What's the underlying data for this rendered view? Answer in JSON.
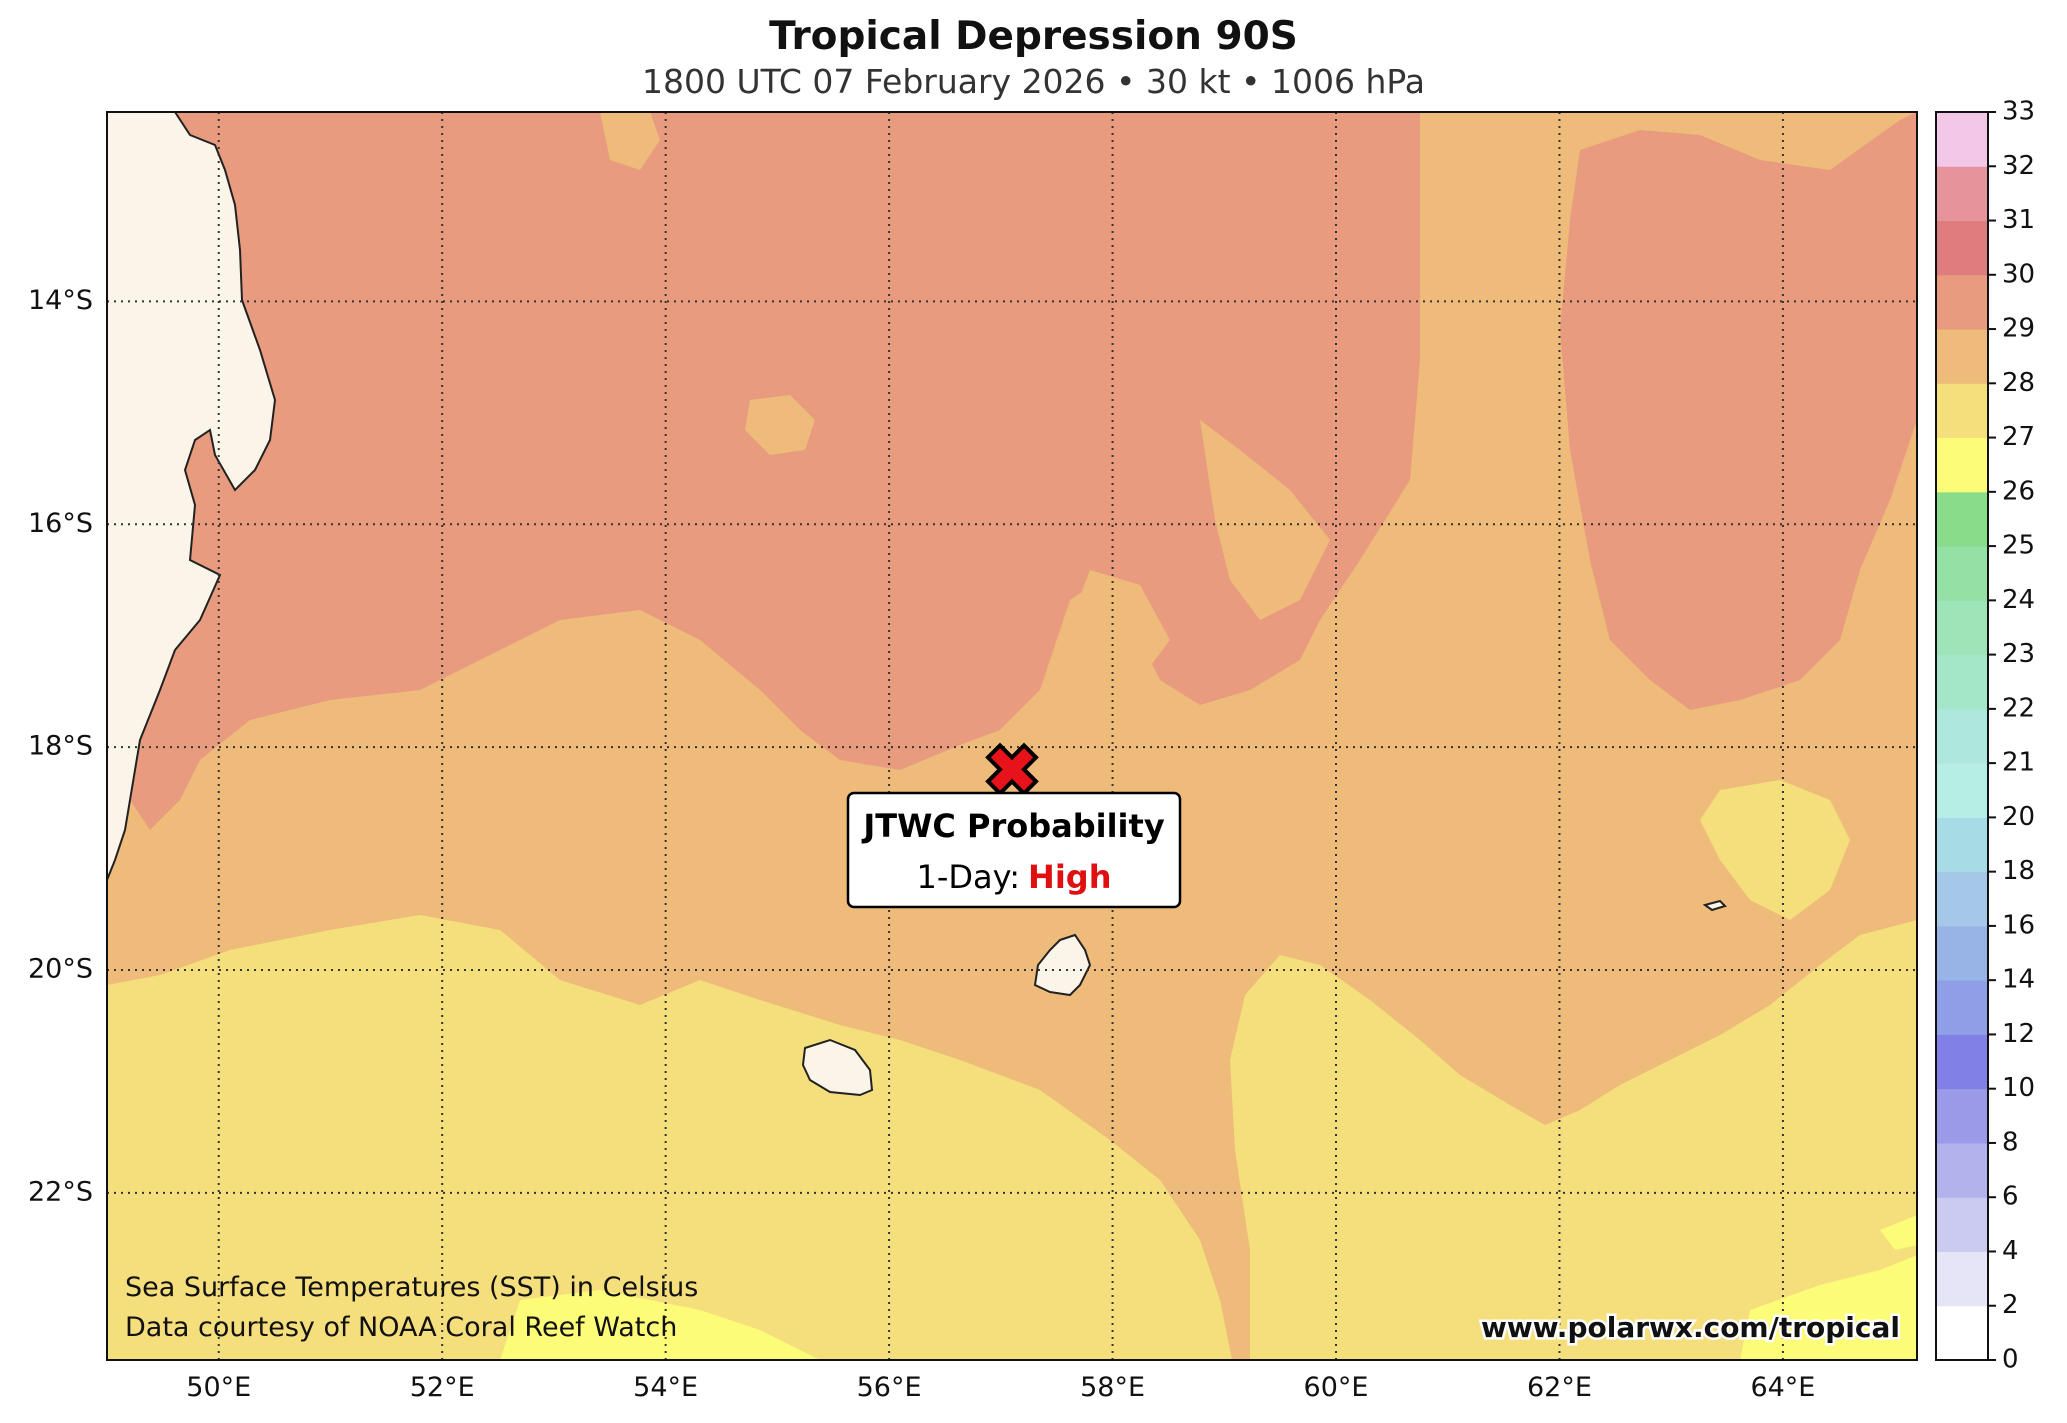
{
  "header": {
    "title": "Tropical Depression 90S",
    "subtitle": "1800 UTC 07 February 2026 • 30 kt • 1006 hPa"
  },
  "map": {
    "lon_range": [
      49,
      65.2
    ],
    "lat_range": [
      -23.5,
      -12.3
    ],
    "lat_ticks": [
      {
        "value": -14,
        "label": "14°S"
      },
      {
        "value": -16,
        "label": "16°S"
      },
      {
        "value": -18,
        "label": "18°S"
      },
      {
        "value": -20,
        "label": "20°S"
      },
      {
        "value": -22,
        "label": "22°S"
      }
    ],
    "lon_ticks": [
      {
        "value": 50,
        "label": "50°E"
      },
      {
        "value": 52,
        "label": "52°E"
      },
      {
        "value": 54,
        "label": "54°E"
      },
      {
        "value": 56,
        "label": "56°E"
      },
      {
        "value": 58,
        "label": "58°E"
      },
      {
        "value": 60,
        "label": "60°E"
      },
      {
        "value": 62,
        "label": "62°E"
      },
      {
        "value": 64,
        "label": "64°E"
      }
    ],
    "storm": {
      "lon": 57.1,
      "lat": -18.2,
      "marker": "x-marker-icon",
      "color": "#e8121a"
    },
    "probability_box": {
      "title": "JTWC Probability",
      "label": "1-Day:",
      "value": "High",
      "value_color": "#e01010"
    },
    "credits": {
      "line1": "Sea Surface Temperatures (SST) in Celsius",
      "line2": "Data courtesy of NOAA Coral Reef Watch"
    },
    "watermark": "www.polarwx.com/tropical",
    "sst_colors": {
      "c26_27": "#fcfc78",
      "c27_28": "#f5de7c",
      "c28_29": "#eebb7b",
      "c29_30": "#e89b7e",
      "land": "#fbf4e9"
    }
  },
  "colorbar": {
    "ticks": [
      "0",
      "2",
      "4",
      "6",
      "8",
      "10",
      "12",
      "14",
      "16",
      "18",
      "20",
      "21",
      "22",
      "23",
      "24",
      "25",
      "26",
      "27",
      "28",
      "29",
      "30",
      "31",
      "32",
      "33"
    ],
    "colors": [
      "#ffffff",
      "#e5e5f7",
      "#cbcbf1",
      "#b2b2ec",
      "#9a9ae8",
      "#8080e6",
      "#8e9fe8",
      "#98b3e6",
      "#a5c7e8",
      "#a7dbe6",
      "#b6eee6",
      "#aee7db",
      "#a4e6c8",
      "#9de4b8",
      "#94e0a5",
      "#88dc8a",
      "#fcfc78",
      "#f5de7c",
      "#eebb7b",
      "#e89b7e",
      "#df7c7d",
      "#e6949b",
      "#f2c7e8"
    ]
  }
}
